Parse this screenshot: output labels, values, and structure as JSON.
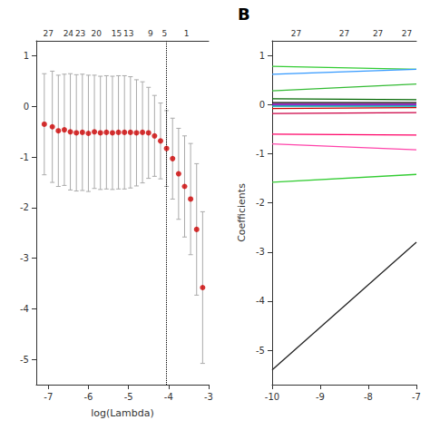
{
  "chart_data": [
    {
      "type": "scatter",
      "xlabel": "log(Lambda)",
      "x": [
        -7.1,
        -6.9,
        -6.75,
        -6.6,
        -6.45,
        -6.3,
        -6.15,
        -6.0,
        -5.85,
        -5.7,
        -5.55,
        -5.4,
        -5.25,
        -5.1,
        -4.95,
        -4.8,
        -4.65,
        -4.5,
        -4.35,
        -4.2,
        -4.05,
        -3.9,
        -3.75,
        -3.6,
        -3.45,
        -3.3,
        -3.15
      ],
      "values": [
        -0.35,
        -0.4,
        -0.48,
        -0.46,
        -0.5,
        -0.52,
        -0.51,
        -0.53,
        -0.5,
        -0.52,
        -0.51,
        -0.52,
        -0.51,
        -0.51,
        -0.51,
        -0.52,
        -0.51,
        -0.52,
        -0.58,
        -0.68,
        -0.83,
        -1.03,
        -1.33,
        -1.58,
        -1.83,
        -2.43,
        -3.58
      ],
      "err_lo": [
        1.0,
        1.1,
        1.1,
        1.1,
        1.15,
        1.15,
        1.15,
        1.15,
        1.12,
        1.12,
        1.12,
        1.12,
        1.12,
        1.12,
        1.1,
        1.05,
        1.0,
        0.9,
        0.8,
        0.75,
        0.75,
        0.8,
        0.9,
        1.0,
        1.1,
        1.3,
        1.5
      ],
      "err_hi": [
        1.0,
        1.1,
        1.1,
        1.1,
        1.15,
        1.15,
        1.15,
        1.15,
        1.12,
        1.12,
        1.12,
        1.12,
        1.12,
        1.12,
        1.1,
        1.05,
        1.0,
        0.9,
        0.8,
        0.75,
        0.75,
        0.8,
        0.9,
        1.0,
        1.1,
        1.3,
        1.5
      ],
      "color": "#cc0000",
      "vline_x": -4.05,
      "xlim": [
        -7.3,
        -3.0
      ],
      "ylim": [
        -5.5,
        1.3
      ],
      "xticks": [
        -7,
        -6,
        -5,
        -4,
        -3
      ],
      "yticks": [
        1,
        0,
        -1,
        -2,
        -3,
        -4,
        -5
      ],
      "x2ticks": [
        {
          "value": -7.0,
          "label": "27"
        },
        {
          "value": -6.5,
          "label": "24"
        },
        {
          "value": -6.2,
          "label": "23"
        },
        {
          "value": -5.8,
          "label": "20"
        },
        {
          "value": -5.3,
          "label": "15"
        },
        {
          "value": -5.0,
          "label": "13"
        },
        {
          "value": -4.45,
          "label": "9"
        },
        {
          "value": -4.1,
          "label": "5"
        },
        {
          "value": -3.55,
          "label": "1"
        }
      ],
      "grid": false
    },
    {
      "type": "line",
      "ylabel": "Coefficients",
      "annotation": "B",
      "xlim": [
        -10.0,
        -7.0
      ],
      "ylim": [
        -5.7,
        1.3
      ],
      "xticks": [
        -10,
        -9,
        -8,
        -7
      ],
      "yticks": [
        1,
        0,
        -1,
        -2,
        -3,
        -4,
        -5
      ],
      "x2ticks": [
        {
          "value": -9.5,
          "label": "27"
        },
        {
          "value": -8.5,
          "label": "27"
        },
        {
          "value": -7.8,
          "label": "27"
        },
        {
          "value": -7.2,
          "label": "27"
        }
      ],
      "grid": false,
      "series": [
        {
          "color": "#33cc33",
          "x": [
            -10,
            -7
          ],
          "values": [
            0.78,
            0.72
          ]
        },
        {
          "color": "#3399ff",
          "x": [
            -10,
            -7
          ],
          "values": [
            0.62,
            0.72
          ]
        },
        {
          "color": "#33bb33",
          "x": [
            -10,
            -7
          ],
          "values": [
            0.28,
            0.42
          ]
        },
        {
          "color": "#006600",
          "x": [
            -10,
            -7
          ],
          "values": [
            0.12,
            0.1
          ]
        },
        {
          "color": "#000000",
          "x": [
            -10,
            -7
          ],
          "values": [
            0.04,
            0.04
          ]
        },
        {
          "color": "#8800aa",
          "x": [
            -10,
            -7
          ],
          "values": [
            0.01,
            0.01
          ]
        },
        {
          "color": "#7700bb",
          "x": [
            -10,
            -7
          ],
          "values": [
            -0.01,
            -0.01
          ]
        },
        {
          "color": "#00aaaa",
          "x": [
            -10,
            -7
          ],
          "values": [
            -0.03,
            -0.03
          ]
        },
        {
          "color": "#cc0000",
          "x": [
            -10,
            -7
          ],
          "values": [
            -0.08,
            -0.06
          ]
        },
        {
          "color": "#cc0044",
          "x": [
            -10,
            -7
          ],
          "values": [
            -0.18,
            -0.16
          ]
        },
        {
          "color": "#ff0066",
          "x": [
            -10,
            -7
          ],
          "values": [
            -0.6,
            -0.62
          ]
        },
        {
          "color": "#ff44aa",
          "x": [
            -10,
            -7
          ],
          "values": [
            -0.8,
            -0.92
          ]
        },
        {
          "color": "#33cc33",
          "x": [
            -10,
            -7
          ],
          "values": [
            -1.58,
            -1.42
          ]
        },
        {
          "color": "#222222",
          "x": [
            -10,
            -7
          ],
          "values": [
            -5.4,
            -2.8
          ]
        }
      ]
    }
  ]
}
